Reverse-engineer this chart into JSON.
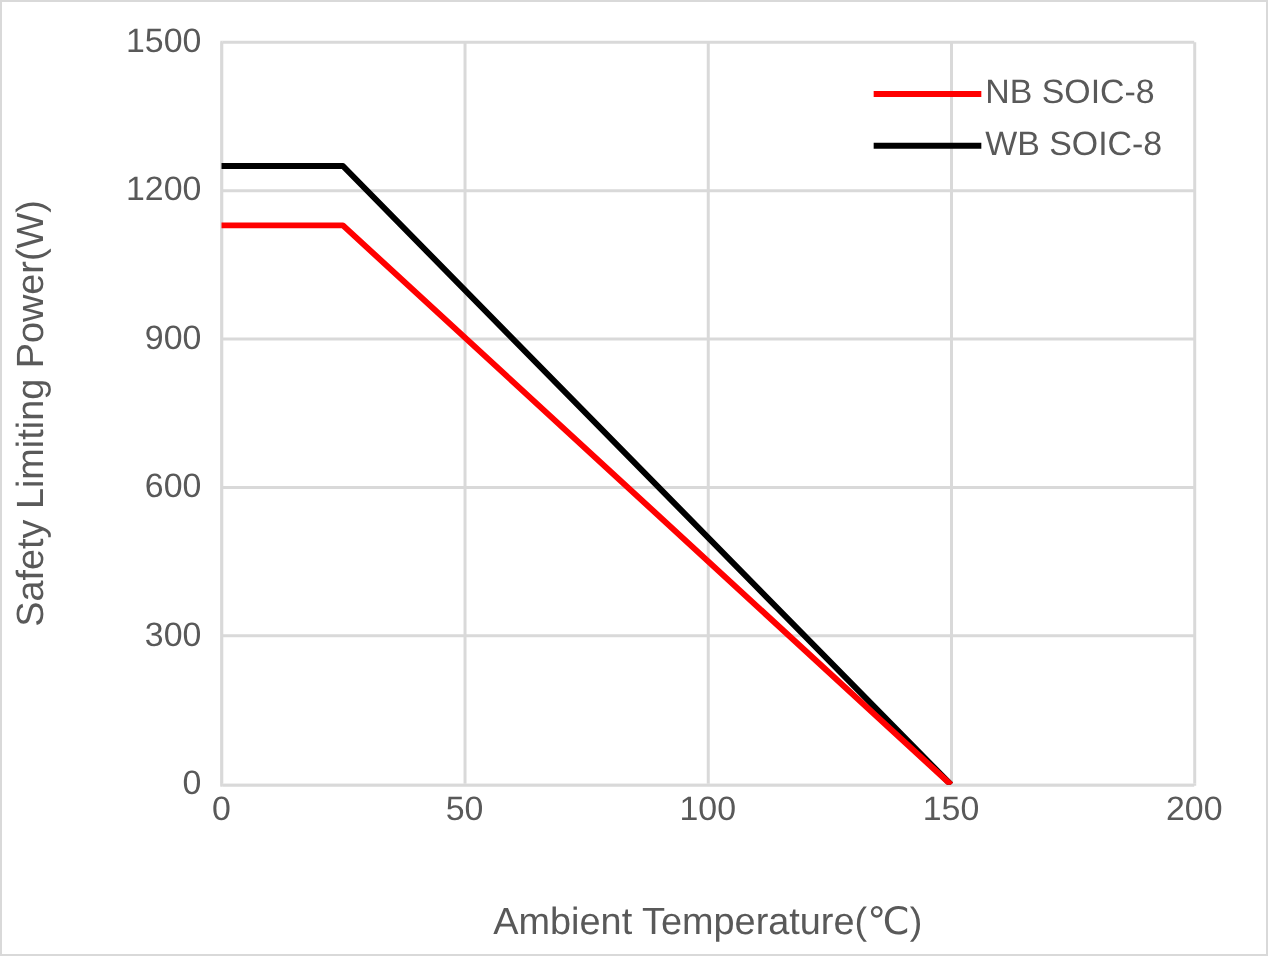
{
  "chart_data": {
    "type": "line",
    "xlabel": "Ambient Temperature(℃)",
    "ylabel": "Safety Limiting Power(W)",
    "xlim": [
      0,
      200
    ],
    "xticks": [
      0,
      50,
      100,
      150,
      200
    ],
    "ylim": [
      0,
      1500
    ],
    "yticks": [
      0,
      300,
      600,
      900,
      1200,
      1500
    ],
    "grid": true,
    "legend": "top right",
    "marker": "none",
    "line_style": "solid",
    "series": [
      {
        "name": "NB SOIC-8",
        "color": "#ff0000",
        "x": [
          0,
          25,
          150
        ],
        "values": [
          1130,
          1130,
          0
        ]
      },
      {
        "name": "WB SOIC-8",
        "color": "#000000",
        "x": [
          0,
          25,
          150
        ],
        "values": [
          1250,
          1250,
          0
        ]
      }
    ]
  }
}
